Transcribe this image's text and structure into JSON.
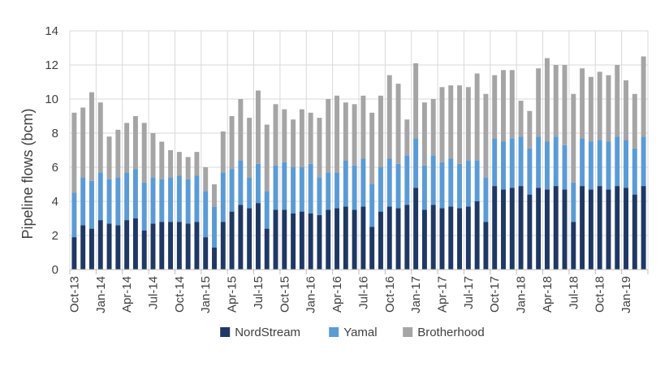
{
  "chart_data": {
    "type": "bar",
    "stacked": true,
    "ylabel": "Pipeline flows (bcm)",
    "xlabel": "",
    "ylim": [
      0,
      14
    ],
    "yticks": [
      0,
      2,
      4,
      6,
      8,
      10,
      12,
      14
    ],
    "grid": true,
    "legend_position": "bottom",
    "x_tick_labels": [
      "Oct-13",
      "Jan-14",
      "Apr-14",
      "Jul-14",
      "Oct-14",
      "Jan-15",
      "Apr-15",
      "Jul-15",
      "Oct-15",
      "Jan-16",
      "Apr-16",
      "Jul-16",
      "Oct-16",
      "Jan-17",
      "Apr-17",
      "Jul-17",
      "Oct-17",
      "Jan-18",
      "Apr-18",
      "Jul-18",
      "Oct-18",
      "Jan-19"
    ],
    "x_tick_every": 3,
    "categories": [
      "Oct-13",
      "Nov-13",
      "Dec-13",
      "Jan-14",
      "Feb-14",
      "Mar-14",
      "Apr-14",
      "May-14",
      "Jun-14",
      "Jul-14",
      "Aug-14",
      "Sep-14",
      "Oct-14",
      "Nov-14",
      "Dec-14",
      "Jan-15",
      "Feb-15",
      "Mar-15",
      "Apr-15",
      "May-15",
      "Jun-15",
      "Jul-15",
      "Aug-15",
      "Sep-15",
      "Oct-15",
      "Nov-15",
      "Dec-15",
      "Jan-16",
      "Feb-16",
      "Mar-16",
      "Apr-16",
      "May-16",
      "Jun-16",
      "Jul-16",
      "Aug-16",
      "Sep-16",
      "Oct-16",
      "Nov-16",
      "Dec-16",
      "Jan-17",
      "Feb-17",
      "Mar-17",
      "Apr-17",
      "May-17",
      "Jun-17",
      "Jul-17",
      "Aug-17",
      "Sep-17",
      "Oct-17",
      "Nov-17",
      "Dec-17",
      "Jan-18",
      "Feb-18",
      "Mar-18",
      "Apr-18",
      "May-18",
      "Jun-18",
      "Jul-18",
      "Aug-18",
      "Sep-18",
      "Oct-18",
      "Nov-18",
      "Dec-18",
      "Jan-19",
      "Feb-19",
      "Mar-19"
    ],
    "series": [
      {
        "name": "NordStream",
        "color": "#1f3864",
        "values": [
          1.9,
          2.6,
          2.4,
          2.9,
          2.7,
          2.6,
          2.9,
          3.0,
          2.3,
          2.7,
          2.8,
          2.8,
          2.8,
          2.7,
          2.8,
          1.9,
          1.3,
          2.8,
          3.4,
          3.8,
          3.6,
          3.9,
          2.4,
          3.5,
          3.5,
          3.3,
          3.4,
          3.3,
          3.2,
          3.5,
          3.6,
          3.7,
          3.5,
          3.7,
          2.5,
          3.4,
          3.7,
          3.6,
          3.8,
          4.8,
          3.5,
          3.8,
          3.6,
          3.7,
          3.6,
          3.7,
          4.0,
          2.8,
          4.9,
          4.7,
          4.8,
          4.9,
          4.4,
          4.8,
          4.7,
          4.9,
          4.7,
          2.8,
          4.9,
          4.7,
          4.9,
          4.7,
          4.9,
          4.8,
          4.4,
          4.9
        ]
      },
      {
        "name": "Yamal",
        "color": "#5b9bd5",
        "values": [
          2.6,
          2.8,
          2.8,
          2.8,
          2.6,
          2.8,
          2.8,
          2.9,
          2.8,
          2.7,
          2.5,
          2.6,
          2.7,
          2.6,
          2.7,
          2.7,
          2.4,
          2.9,
          2.5,
          2.6,
          1.8,
          2.3,
          2.2,
          2.6,
          2.8,
          2.7,
          2.6,
          2.9,
          2.2,
          2.2,
          2.1,
          2.7,
          2.6,
          2.8,
          2.5,
          2.6,
          2.8,
          2.6,
          2.9,
          2.9,
          2.6,
          2.9,
          2.7,
          2.8,
          2.6,
          2.7,
          2.4,
          2.6,
          2.8,
          2.8,
          2.9,
          2.9,
          2.7,
          3.0,
          2.8,
          2.9,
          2.6,
          2.3,
          2.8,
          2.8,
          2.7,
          2.8,
          2.9,
          2.8,
          2.7,
          2.9
        ]
      },
      {
        "name": "Brotherhood",
        "color": "#a5a5a5",
        "values": [
          4.7,
          4.1,
          5.2,
          4.1,
          2.5,
          2.8,
          2.9,
          3.1,
          3.5,
          2.6,
          2.2,
          1.6,
          1.4,
          1.3,
          1.4,
          1.4,
          1.3,
          2.4,
          3.1,
          3.6,
          3.5,
          4.3,
          3.9,
          3.6,
          3.1,
          2.8,
          3.4,
          3.0,
          3.5,
          4.3,
          4.5,
          3.4,
          3.6,
          3.7,
          4.2,
          4.2,
          4.9,
          4.7,
          2.1,
          4.4,
          3.7,
          3.3,
          4.4,
          4.3,
          4.6,
          4.3,
          5.1,
          4.9,
          3.7,
          4.2,
          4.0,
          2.1,
          2.2,
          4.0,
          4.9,
          4.2,
          4.7,
          5.2,
          4.1,
          3.8,
          4.0,
          3.9,
          4.2,
          3.5,
          3.2,
          4.7
        ]
      }
    ]
  }
}
